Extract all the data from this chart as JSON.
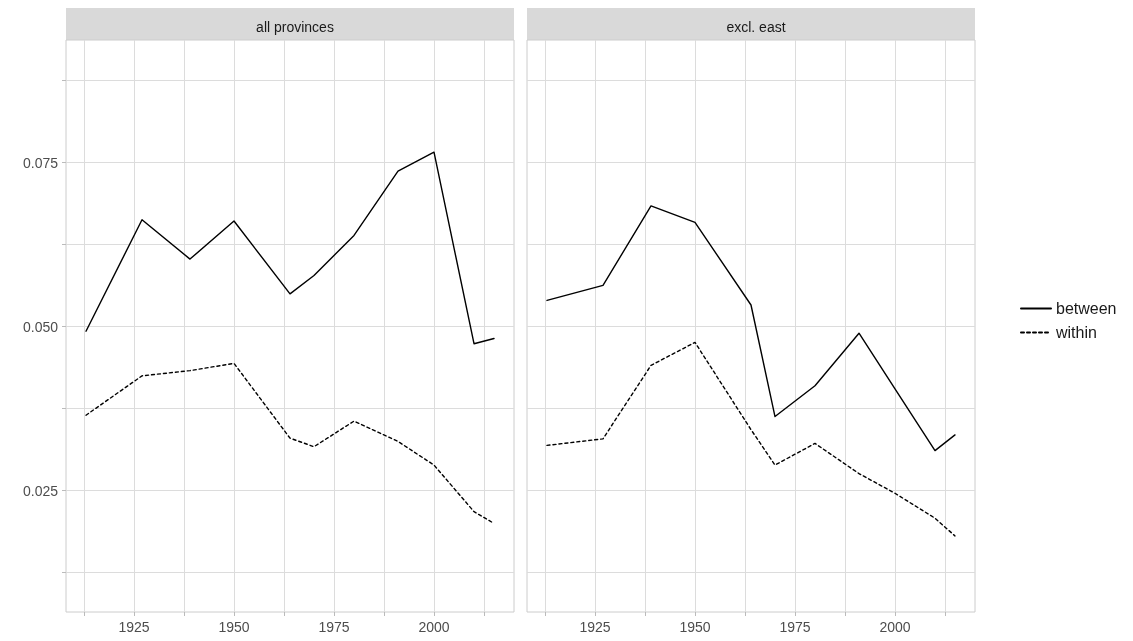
{
  "chart_data": [
    {
      "type": "line",
      "title": "all provinces",
      "legend": false,
      "x": [
        1913,
        1927,
        1939,
        1950,
        1964,
        1970,
        1980,
        1991,
        2000,
        2010,
        2015
      ],
      "series": [
        {
          "color": "#000000",
          "line_style": "solid",
          "values": [
            0.0493,
            0.0663,
            0.0603,
            0.0661,
            0.055,
            0.0578,
            0.0639,
            0.0737,
            0.0766,
            0.0474,
            0.0482
          ]
        },
        {
          "color": "#000000",
          "line_style": "dashed",
          "values": [
            0.0365,
            0.0425,
            0.0433,
            0.0444,
            0.033,
            0.0317,
            0.0356,
            0.0325,
            0.0289,
            0.0218,
            0.02
          ]
        }
      ],
      "xlim": [
        1908,
        2020
      ],
      "xticks": [
        {
          "value": 1912.5,
          "label": null
        },
        1925,
        {
          "value": 1937.5,
          "label": null
        },
        1950,
        {
          "value": 1962.5,
          "label": null
        },
        1975,
        {
          "value": 1987.5,
          "label": null
        },
        2000,
        {
          "value": 2012.5,
          "label": null
        }
      ],
      "ylim": [
        0.0065,
        0.0937
      ],
      "yticks": [
        {
          "value": 0.0125,
          "label": null
        },
        {
          "value": 0.025,
          "label": "0.025"
        },
        {
          "value": 0.0375,
          "label": null
        },
        {
          "value": 0.05,
          "label": "0.050"
        },
        {
          "value": 0.0625,
          "label": null
        },
        {
          "value": 0.075,
          "label": "0.075"
        },
        {
          "value": 0.0875,
          "label": null
        }
      ],
      "grid": true,
      "marker": "none"
    },
    {
      "type": "line",
      "title": "excl. east",
      "legend": "right",
      "tick_labels": "x",
      "x": [
        1913,
        1927,
        1939,
        1950,
        1964,
        1970,
        1980,
        1991,
        2000,
        2010,
        2015
      ],
      "series": [
        {
          "name": "between",
          "color": "#000000",
          "line_style": "solid",
          "values": [
            0.054,
            0.0563,
            0.0684,
            0.0659,
            0.0533,
            0.0363,
            0.041,
            0.049,
            0.0405,
            0.0311,
            0.0335
          ]
        },
        {
          "name": "within",
          "color": "#000000",
          "line_style": "dashed",
          "values": [
            0.0319,
            0.0329,
            0.0441,
            0.0476,
            0.0343,
            0.0289,
            0.0322,
            0.0276,
            0.0246,
            0.0208,
            0.0181
          ]
        }
      ],
      "xlim": [
        1908,
        2020
      ],
      "xticks": [
        {
          "value": 1912.5,
          "label": null
        },
        1925,
        {
          "value": 1937.5,
          "label": null
        },
        1950,
        {
          "value": 1962.5,
          "label": null
        },
        1975,
        {
          "value": 1987.5,
          "label": null
        },
        2000,
        {
          "value": 2012.5,
          "label": null
        }
      ],
      "ylim": [
        0.0065,
        0.0937
      ],
      "yticks": [
        {
          "value": 0.0125,
          "label": null
        },
        {
          "value": 0.025,
          "label": null
        },
        {
          "value": 0.0375,
          "label": null
        },
        {
          "value": 0.05,
          "label": null
        },
        {
          "value": 0.0625,
          "label": null
        },
        {
          "value": 0.075,
          "label": null
        },
        {
          "value": 0.0875,
          "label": null
        }
      ],
      "grid": true,
      "marker": "none"
    }
  ]
}
